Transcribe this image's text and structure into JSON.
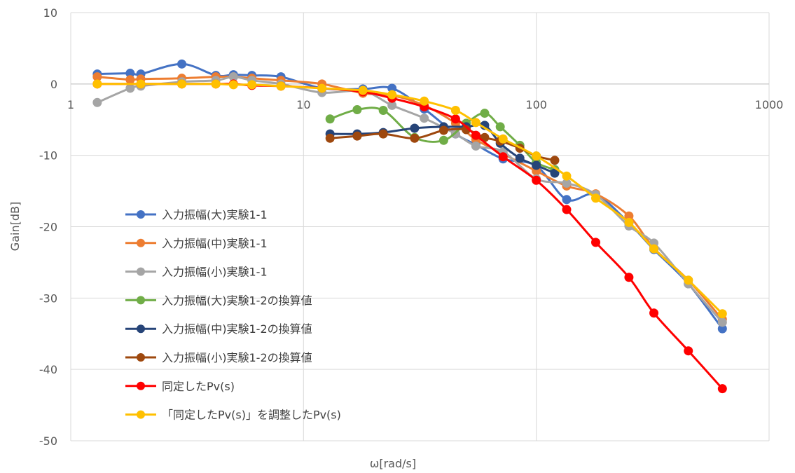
{
  "chart_data": {
    "type": "line",
    "title": "",
    "xlabel": "ω[rad/s]",
    "ylabel": "Gain[dB]",
    "xscale": "log",
    "xlim": [
      1,
      1000
    ],
    "ylim": [
      -50,
      10
    ],
    "xticks": [
      1,
      10,
      100,
      1000
    ],
    "xtick_labels": [
      "1",
      "10",
      "100",
      "1000"
    ],
    "yticks": [
      10,
      0,
      -10,
      -20,
      -30,
      -40,
      -50
    ],
    "ytick_labels": [
      "10",
      "0",
      "-10",
      "-20",
      "-30",
      "-40",
      "-50"
    ],
    "grid": true,
    "legend_position": "left",
    "series": [
      {
        "name": "入力振幅(大)実験1-1",
        "color": "#4472C4",
        "x": [
          1.3,
          1.8,
          2.0,
          3.0,
          4.2,
          5.0,
          6.0,
          8.0,
          12.0,
          18.0,
          24.0,
          33.0,
          45.0,
          55.0,
          72.0,
          100.0,
          135.0,
          180.0,
          250.0,
          320.0,
          450.0,
          630.0
        ],
        "y": [
          1.4,
          1.5,
          1.4,
          2.8,
          1.2,
          1.3,
          1.2,
          1.0,
          -0.6,
          -0.7,
          -0.6,
          -3.5,
          -7.0,
          -8.5,
          -10.5,
          -11.5,
          -16.2,
          -15.5,
          -19.5,
          -23.2,
          -28.0,
          -34.3
        ]
      },
      {
        "name": "入力振幅(中)実験1-1",
        "color": "#ED7D31",
        "x": [
          1.3,
          1.8,
          2.0,
          3.0,
          4.2,
          5.0,
          6.0,
          8.0,
          12.0,
          18.0,
          24.0,
          33.0,
          45.0,
          55.0,
          72.0,
          100.0,
          135.0,
          180.0,
          250.0,
          320.0,
          450.0,
          630.0
        ],
        "y": [
          1.0,
          0.6,
          0.7,
          0.8,
          1.0,
          1.0,
          0.8,
          0.5,
          0.0,
          -1.3,
          -1.6,
          -3.0,
          -5.5,
          -7.8,
          -9.8,
          -12.2,
          -14.3,
          -15.4,
          -18.5,
          -23.0,
          -27.5,
          -33.0
        ]
      },
      {
        "name": "入力振幅(小)実験1-1",
        "color": "#A5A5A5",
        "x": [
          1.3,
          1.8,
          2.0,
          3.0,
          4.2,
          5.0,
          6.0,
          8.0,
          12.0,
          18.0,
          24.0,
          33.0,
          45.0,
          55.0,
          72.0,
          100.0,
          135.0,
          180.0,
          250.0,
          320.0,
          450.0,
          630.0
        ],
        "y": [
          -2.6,
          -0.6,
          -0.3,
          0.3,
          0.5,
          1.0,
          0.5,
          0.0,
          -1.2,
          -1.0,
          -3.0,
          -4.8,
          -7.0,
          -8.7,
          -9.5,
          -13.3,
          -13.9,
          -15.5,
          -19.9,
          -22.3,
          -28.0,
          -33.4
        ]
      },
      {
        "name": "入力振幅(大)実験1-2の換算値",
        "color": "#70AD47",
        "x": [
          13.0,
          17.0,
          22.0,
          30.0,
          40.0,
          50.0,
          60.0,
          70.0,
          85.0,
          100.0,
          120.0
        ],
        "y": [
          -4.9,
          -3.6,
          -3.7,
          -7.5,
          -7.9,
          -5.5,
          -4.1,
          -6.0,
          -8.6,
          -11.0,
          -12.0
        ]
      },
      {
        "name": "入力振幅(中)実験1-2の換算値",
        "color": "#264478",
        "x": [
          13.0,
          17.0,
          22.0,
          30.0,
          40.0,
          50.0,
          60.0,
          70.0,
          85.0,
          100.0,
          120.0
        ],
        "y": [
          -7.0,
          -7.0,
          -6.8,
          -6.2,
          -6.0,
          -6.0,
          -5.8,
          -8.3,
          -10.4,
          -11.4,
          -12.5
        ]
      },
      {
        "name": "入力振幅(小)実験1-2の換算値",
        "color": "#9E480E",
        "x": [
          13.0,
          17.0,
          22.0,
          30.0,
          40.0,
          50.0,
          60.0,
          70.0,
          85.0,
          100.0,
          120.0
        ],
        "y": [
          -7.6,
          -7.3,
          -7.0,
          -7.6,
          -6.5,
          -6.4,
          -7.5,
          -8.0,
          -9.0,
          -10.1,
          -10.7
        ]
      },
      {
        "name": "同定したPv(s)",
        "color": "#FF0000",
        "x": [
          1.3,
          2.0,
          3.0,
          4.2,
          5.0,
          6.0,
          8.0,
          12.0,
          18.0,
          24.0,
          33.0,
          45.0,
          55.0,
          72.0,
          100.0,
          135.0,
          180.0,
          250.0,
          320.0,
          450.0,
          630.0
        ],
        "y": [
          0.0,
          0.0,
          0.0,
          0.0,
          0.0,
          -0.2,
          -0.3,
          -0.6,
          -1.1,
          -2.0,
          -3.2,
          -4.9,
          -7.2,
          -10.2,
          -13.5,
          -17.6,
          -22.2,
          -27.1,
          -32.1,
          -37.4,
          -42.7
        ]
      },
      {
        "name": "「同定したPv(s)」を調整したPv(s)",
        "color": "#FFC000",
        "x": [
          1.3,
          2.0,
          3.0,
          4.2,
          5.0,
          6.0,
          8.0,
          12.0,
          18.0,
          24.0,
          33.0,
          45.0,
          55.0,
          72.0,
          100.0,
          135.0,
          180.0,
          250.0,
          320.0,
          450.0,
          630.0
        ],
        "y": [
          0.0,
          0.0,
          0.0,
          0.0,
          -0.1,
          -0.1,
          -0.3,
          -0.6,
          -0.9,
          -1.5,
          -2.4,
          -3.7,
          -5.4,
          -7.7,
          -10.1,
          -12.9,
          -16.0,
          -19.4,
          -23.1,
          -27.5,
          -32.2
        ]
      }
    ]
  }
}
